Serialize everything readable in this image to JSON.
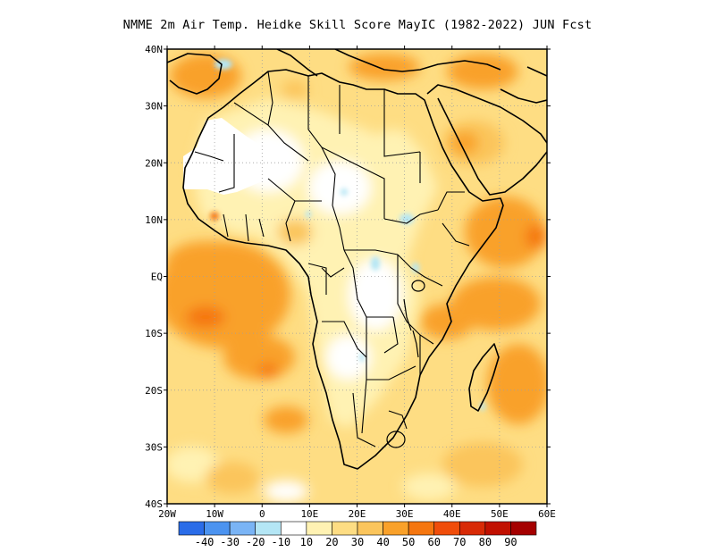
{
  "title": "NMME 2m Air Temp. Heidke Skill Score MayIC (1982-2022) JUN Fcst",
  "map": {
    "lon_range": [
      -20,
      60
    ],
    "lat_range": [
      -40,
      40
    ],
    "lat_ticks": [
      "40N",
      "30N",
      "20N",
      "10N",
      "EQ",
      "10S",
      "20S",
      "30S",
      "40S"
    ],
    "lon_ticks": [
      "20W",
      "10W",
      "0",
      "10E",
      "20E",
      "30E",
      "40E",
      "50E",
      "60E"
    ],
    "grid": "dotted"
  },
  "colorbar": {
    "labels": [
      "-40",
      "-30",
      "-20",
      "-10",
      "10",
      "20",
      "30",
      "40",
      "50",
      "60",
      "70",
      "80",
      "90"
    ],
    "colors": [
      "#2a6ce8",
      "#4b93f0",
      "#7ab4f5",
      "#b4e6f5",
      "#ffffff",
      "#fff2b3",
      "#fedd83",
      "#fbc55c",
      "#f9a12a",
      "#f5760f",
      "#f04d0a",
      "#d82a06",
      "#c11000",
      "#a50000"
    ]
  }
}
